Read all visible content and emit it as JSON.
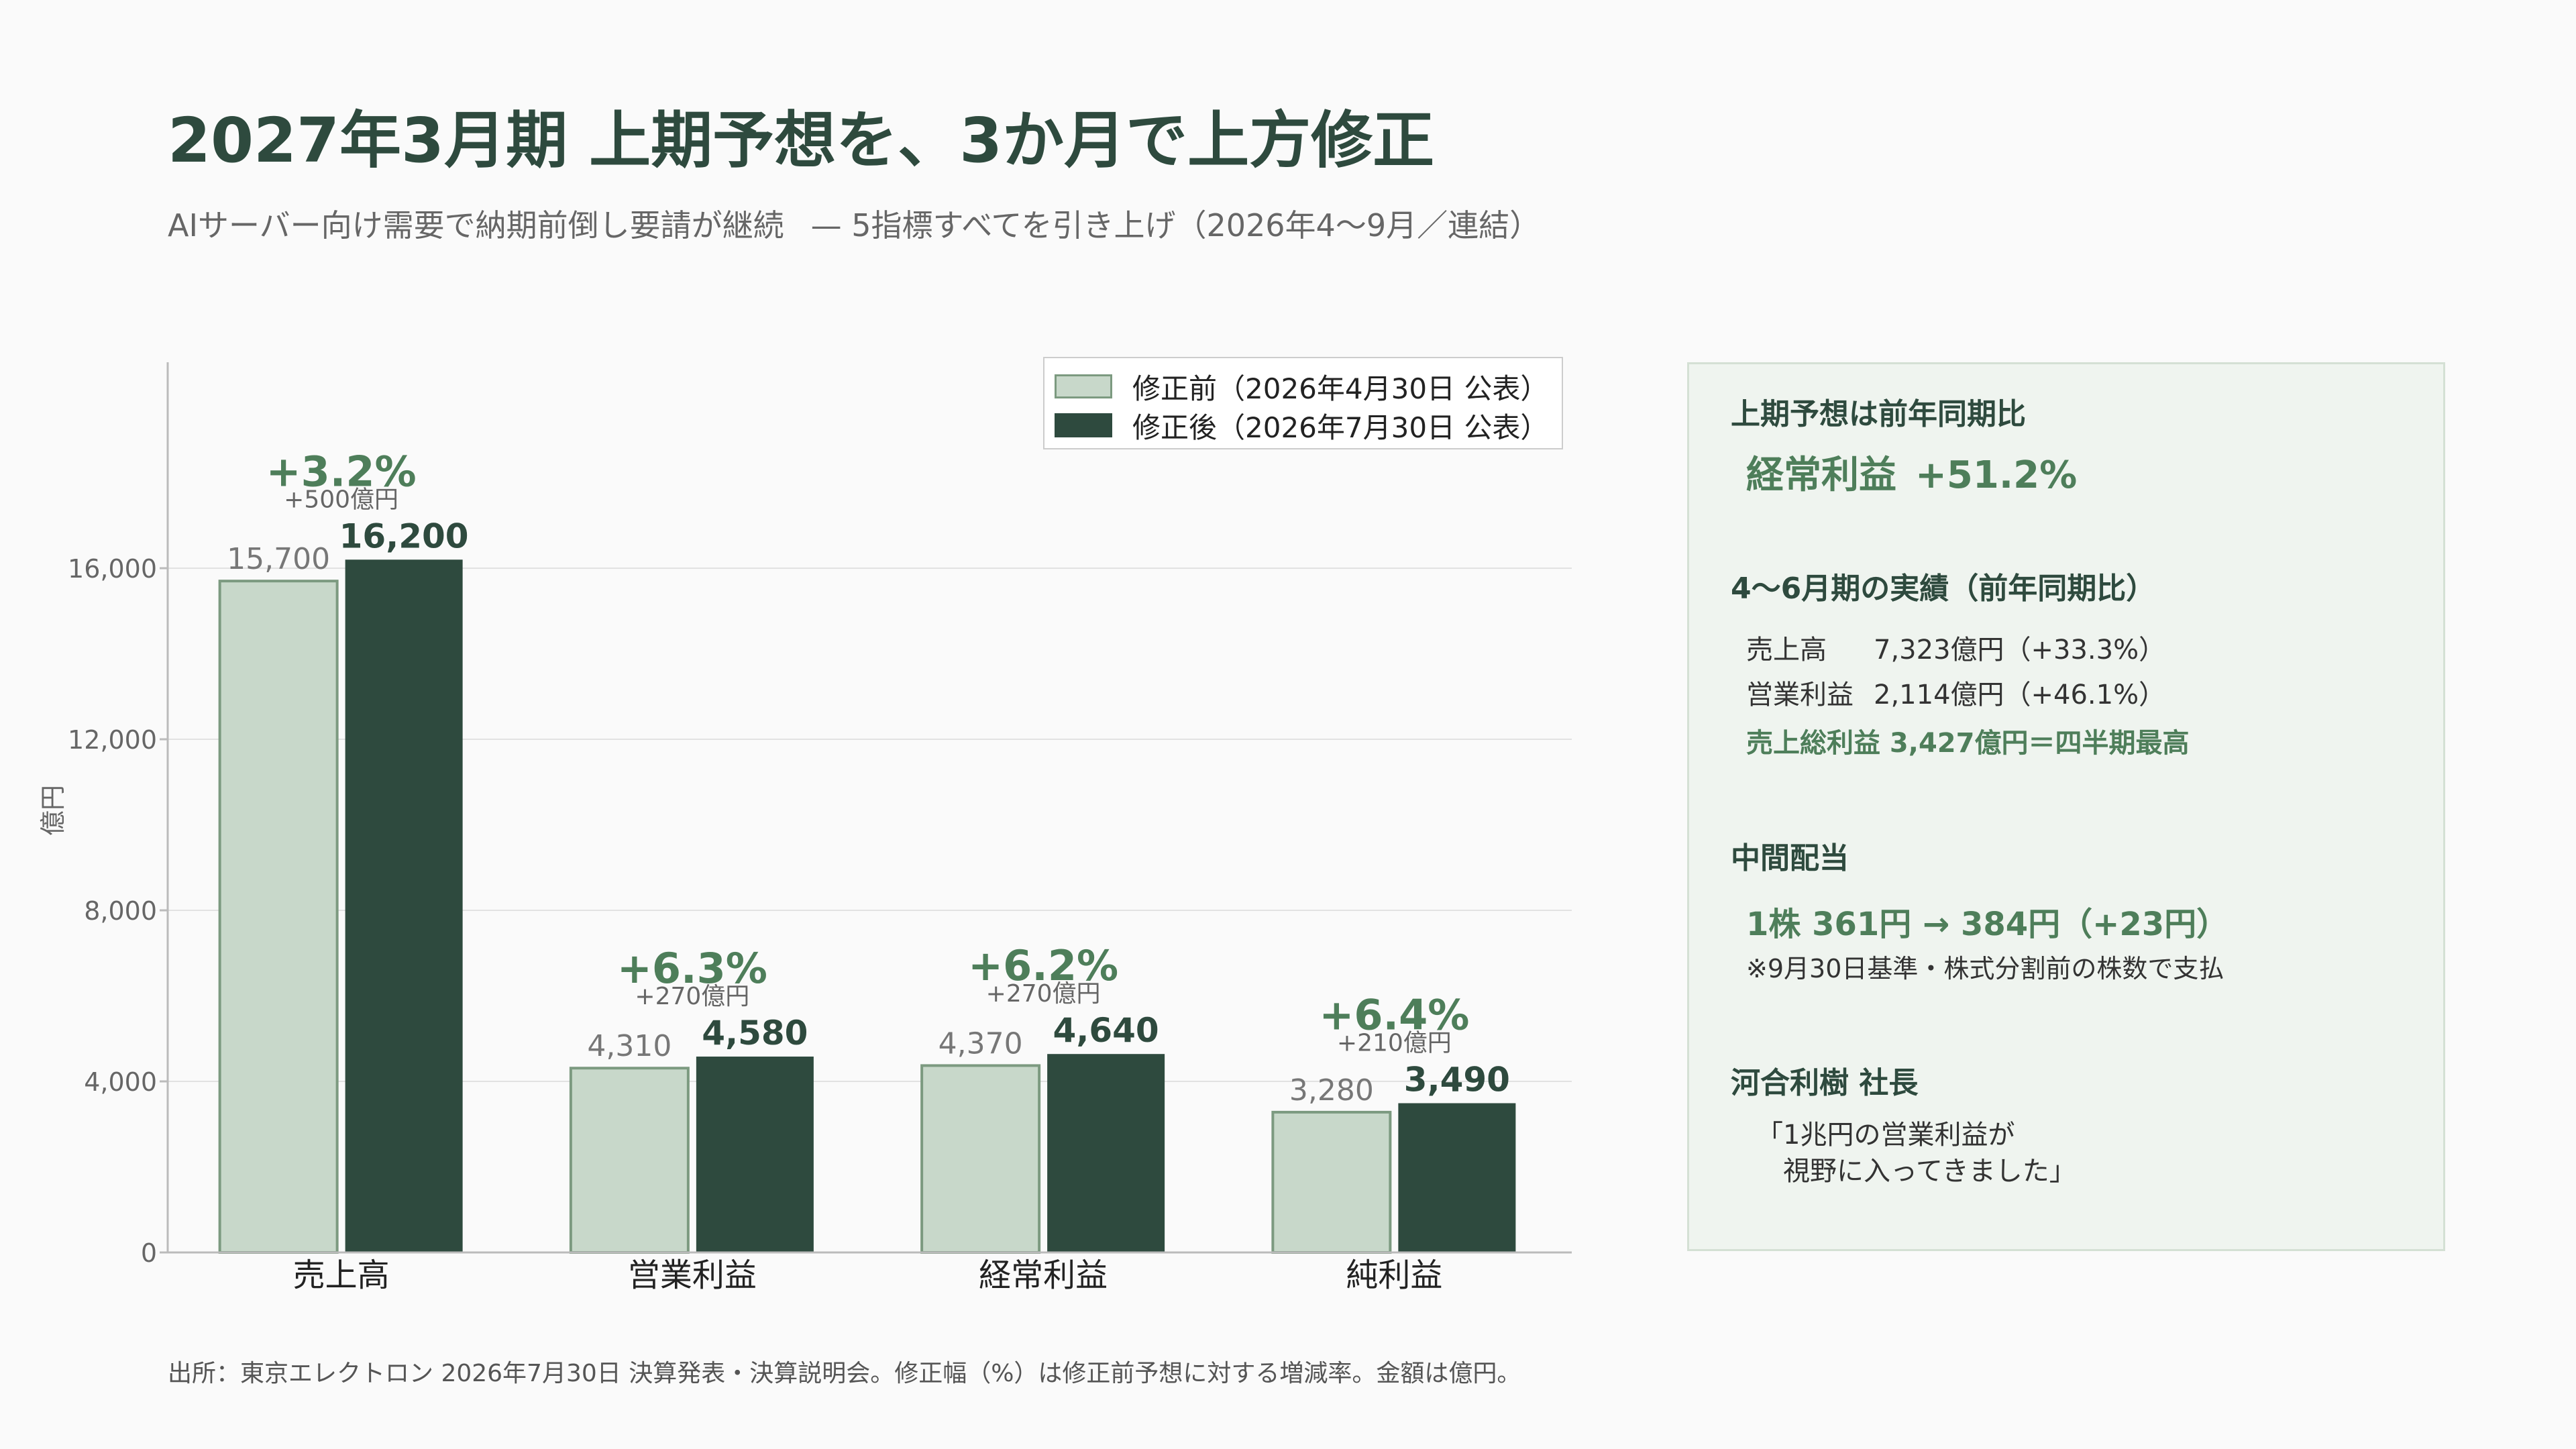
{
  "header": {
    "title": "2027年3月期 上期予想を、3か月で上方修正",
    "subtitle_main": "AIサーバー向け需要で納期前倒し要請が継続",
    "subtitle_tail": "— 5指標すべてを引き上げ（2026年4〜9月／連結）"
  },
  "chart_data": {
    "type": "bar",
    "categories": [
      "売上高",
      "営業利益",
      "経常利益",
      "純利益"
    ],
    "series": [
      {
        "name": "修正前（2026年4月30日 公表）",
        "values": [
          15700,
          4310,
          4370,
          3280
        ]
      },
      {
        "name": "修正後（2026年7月30日 公表）",
        "values": [
          16200,
          4580,
          4640,
          3490
        ]
      }
    ],
    "value_labels_before": [
      "15,700",
      "4,310",
      "4,370",
      "3,280"
    ],
    "value_labels_after": [
      "16,200",
      "4,580",
      "4,640",
      "3,490"
    ],
    "change_pct": [
      "+3.2%",
      "+6.3%",
      "+6.2%",
      "+6.4%"
    ],
    "change_amount": [
      "+500億円",
      "+270億円",
      "+270億円",
      "+210億円"
    ],
    "ylabel": "億円",
    "yticks": [
      0,
      4000,
      8000,
      12000,
      16000
    ],
    "ytick_labels": [
      "0",
      "4,000",
      "8,000",
      "12,000",
      "16,000"
    ],
    "ylim": [
      0,
      16000
    ],
    "grid": true,
    "legend_position": "top-right",
    "colors": {
      "before": "#c8d8ca",
      "before_border": "#7c9a80",
      "after": "#2e4a3e",
      "accent": "#4e7e5a"
    }
  },
  "panel": {
    "yoy_heading": "上期予想は前年同期比",
    "yoy_metric": "経常利益",
    "yoy_value": "+51.2%",
    "q1_heading": "4〜6月期の実績（前年同期比）",
    "q1_rows": [
      {
        "label": "売上高",
        "value": "7,323億円（+33.3%）"
      },
      {
        "label": "営業利益",
        "value": "2,114億円（+46.1%）"
      }
    ],
    "q1_highlight": "売上総利益 3,427億円＝四半期最高",
    "dividend_heading": "中間配当",
    "dividend_value": "1株 361円 → 384円（+23円）",
    "dividend_note": "※9月30日基準・株式分割前の株数で支払",
    "ceo_heading": "河合利樹 社長",
    "ceo_quote_line1": "「1兆円の営業利益が",
    "ceo_quote_line2": "視野に入ってきました」"
  },
  "footer": {
    "source": "出所：東京エレクトロン 2026年7月30日 決算発表・決算説明会。修正幅（%）は修正前予想に対する増減率。金額は億円。"
  }
}
